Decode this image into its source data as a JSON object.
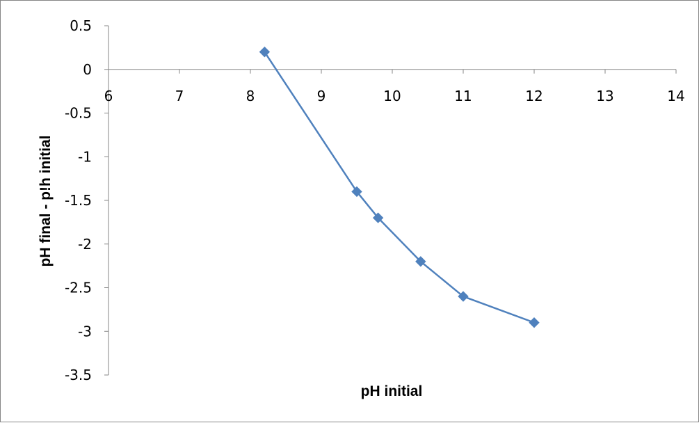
{
  "chart_data": {
    "type": "scatter",
    "title": "",
    "xlabel": "pH initial",
    "ylabel": "pH final - p!h initial",
    "xlim": [
      6,
      14
    ],
    "ylim": [
      -3.5,
      0.5
    ],
    "x_ticks": [
      "6",
      "7",
      "8",
      "9",
      "10",
      "11",
      "12",
      "13",
      "14"
    ],
    "y_ticks": [
      "0.5",
      "0",
      "-0.5",
      "-1",
      "-1.5",
      "-2",
      "-2.5",
      "-3",
      "-3.5"
    ],
    "series": [
      {
        "x": [
          8.2,
          9.5,
          9.8,
          10.4,
          11,
          12
        ],
        "y": [
          0.2,
          -1.4,
          -1.7,
          -2.2,
          -2.6,
          -2.9
        ],
        "color": "#4f81bd",
        "marker": "diamond",
        "line": "straight"
      }
    ],
    "grid": false,
    "legend": "none",
    "axis_color": "#868686"
  }
}
